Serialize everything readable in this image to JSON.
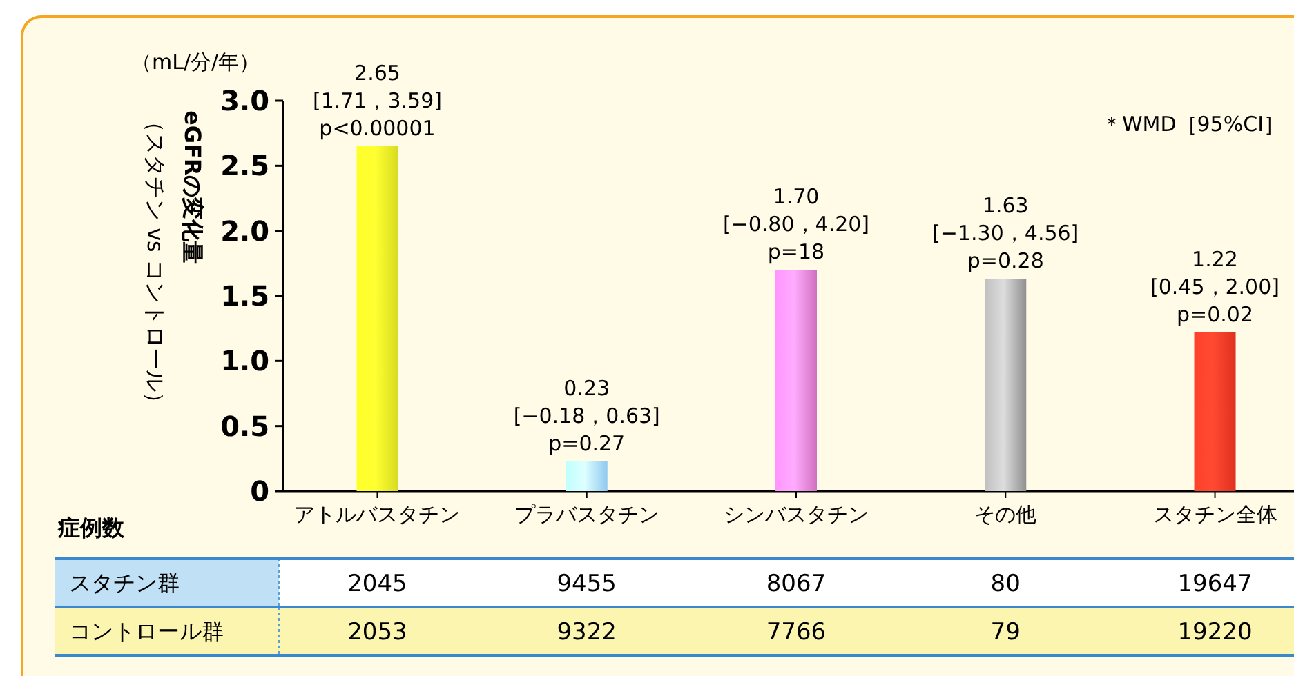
{
  "chart_data": {
    "type": "bar",
    "ylabel": "eGFRの変化量（スタチン vs コントロール）",
    "categories": [
      "アトルバスタチン",
      "プラバスタチン",
      "シンバスタチン",
      "その他",
      "スタチン全体"
    ],
    "values": [
      2.65,
      0.23,
      1.7,
      1.63,
      1.22
    ],
    "colors": [
      "#d8dc20",
      "#90c8f0",
      "#d070c0",
      "#909090",
      "#e03020"
    ],
    "value_labels": [
      "2.65\n[1.71，3.59]\np<0.00001",
      "0.23\n[−0.18，0.63]\np=0.27",
      "1.70\n[−0.80，4.20]\np=18",
      "1.63\n[−1.30，4.56]\np=0.28",
      "1.22\n[0.45，2.00]\np=0.02"
    ],
    "ylim": [
      0,
      3
    ],
    "yticks": [
      0,
      {
        "value": 0.5,
        "label": "0.5"
      },
      {
        "value": 1,
        "label": "1.0"
      },
      {
        "value": 1.5,
        "label": "1.5"
      },
      {
        "value": 2,
        "label": "2.0"
      },
      {
        "value": 2.5,
        "label": "2.5"
      },
      {
        "value": 3,
        "label": "3.0"
      }
    ],
    "annotations": [
      "（mL/分/年）",
      "＊WMD［95%CI］",
      "症例数",
      "スタチン群",
      "2045",
      "9455",
      "8067",
      "80",
      "19647",
      "コントロール群",
      "2053",
      "9322",
      "7766",
      "79",
      "19220"
    ]
  }
}
